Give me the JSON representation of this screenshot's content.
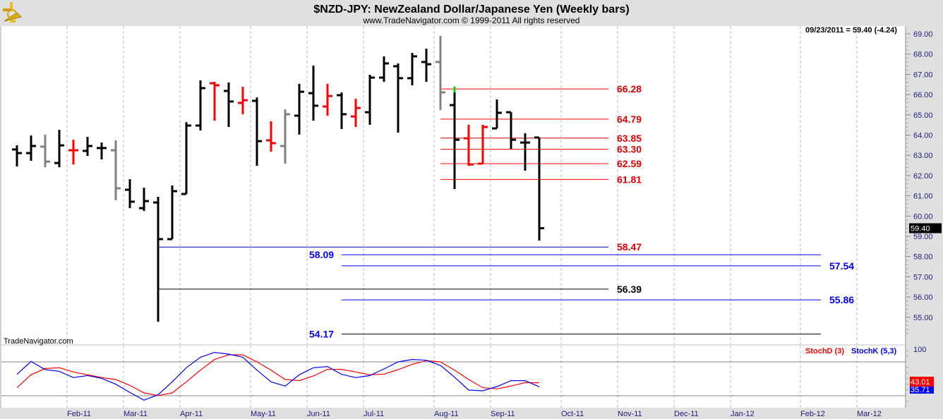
{
  "header": {
    "title": "$NZD-JPY:  NewZealand Dollar/Japanese Yen  (Weekly bars)",
    "subtitle": "www.TradeNavigator.com © 1999-2011 All rights reserved",
    "last_quote": "09/23/2011 = 59.40 (-4.24)",
    "watermark": "TradeNavigator.com"
  },
  "chart_data": [
    {
      "type": "ohlc",
      "title": "$NZD-JPY:  NewZealand Dollar/Japanese Yen  (Weekly bars)",
      "ylim": [
        54,
        69.6
      ],
      "y_ticks": [
        "69.00",
        "68.00",
        "67.00",
        "66.00",
        "65.00",
        "64.00",
        "63.00",
        "62.00",
        "61.00",
        "60.00",
        "59.00",
        "58.00",
        "57.00",
        "56.00",
        "55.00"
      ],
      "x_ticks": [
        "Feb-11",
        "Mar-11",
        "Apr-11",
        "May-11",
        "Jun-11",
        "Jul-11",
        "Aug-11",
        "Sep-11",
        "Oct-11",
        "Nov-11",
        "Dec-11",
        "Jan-12",
        "Feb-12",
        "Mar-12"
      ],
      "last_price_label": "59.40",
      "colors": {
        "k": "#000000",
        "r": "#ff0000",
        "g": "#808080",
        "up_tick": "#00dd00"
      },
      "bars": [
        {
          "o": 63.29,
          "h": 63.49,
          "l": 62.45,
          "c": 63.11,
          "col": "k"
        },
        {
          "o": 63.11,
          "h": 63.98,
          "l": 62.73,
          "c": 63.46,
          "col": "k"
        },
        {
          "o": 63.43,
          "h": 64.02,
          "l": 62.41,
          "c": 62.69,
          "col": "g"
        },
        {
          "o": 62.62,
          "h": 64.26,
          "l": 62.41,
          "c": 63.49,
          "col": "k"
        },
        {
          "o": 63.25,
          "h": 63.77,
          "l": 62.55,
          "c": 63.25,
          "col": "r"
        },
        {
          "o": 63.22,
          "h": 63.91,
          "l": 62.97,
          "c": 63.46,
          "col": "k"
        },
        {
          "o": 63.36,
          "h": 63.63,
          "l": 62.8,
          "c": 63.36,
          "col": "k"
        },
        {
          "o": 63.25,
          "h": 63.74,
          "l": 60.78,
          "c": 61.37,
          "col": "g"
        },
        {
          "o": 61.3,
          "h": 61.82,
          "l": 60.39,
          "c": 60.71,
          "col": "k"
        },
        {
          "o": 60.39,
          "h": 61.4,
          "l": 60.25,
          "c": 60.74,
          "col": "k"
        },
        {
          "o": 60.67,
          "h": 60.95,
          "l": 54.78,
          "c": 58.86,
          "col": "k"
        },
        {
          "o": 58.86,
          "h": 61.51,
          "l": 58.86,
          "c": 61.23,
          "col": "k"
        },
        {
          "o": 61.09,
          "h": 64.64,
          "l": 61.09,
          "c": 64.47,
          "col": "k"
        },
        {
          "o": 64.47,
          "h": 66.7,
          "l": 64.23,
          "c": 66.32,
          "col": "k"
        },
        {
          "o": 66.56,
          "h": 66.63,
          "l": 64.71,
          "c": 66.46,
          "col": "r"
        },
        {
          "o": 66.18,
          "h": 66.6,
          "l": 64.4,
          "c": 65.66,
          "col": "k"
        },
        {
          "o": 65.59,
          "h": 66.39,
          "l": 65.03,
          "c": 65.72,
          "col": "r"
        },
        {
          "o": 65.69,
          "h": 65.86,
          "l": 62.48,
          "c": 63.7,
          "col": "k"
        },
        {
          "o": 63.74,
          "h": 64.68,
          "l": 63.18,
          "c": 63.6,
          "col": "r"
        },
        {
          "o": 63.46,
          "h": 65.27,
          "l": 62.59,
          "c": 65.03,
          "col": "g"
        },
        {
          "o": 64.96,
          "h": 66.53,
          "l": 64.02,
          "c": 66.14,
          "col": "k"
        },
        {
          "o": 66.07,
          "h": 67.43,
          "l": 64.71,
          "c": 65.45,
          "col": "k"
        },
        {
          "o": 65.41,
          "h": 66.53,
          "l": 64.96,
          "c": 65.93,
          "col": "r"
        },
        {
          "o": 65.97,
          "h": 66.11,
          "l": 64.3,
          "c": 65.03,
          "col": "k"
        },
        {
          "o": 64.92,
          "h": 65.79,
          "l": 64.4,
          "c": 65.34,
          "col": "r"
        },
        {
          "o": 65.13,
          "h": 66.98,
          "l": 64.51,
          "c": 66.84,
          "col": "k"
        },
        {
          "o": 66.84,
          "h": 67.89,
          "l": 66.63,
          "c": 67.54,
          "col": "k"
        },
        {
          "o": 67.4,
          "h": 67.54,
          "l": 64.12,
          "c": 66.81,
          "col": "k"
        },
        {
          "o": 66.81,
          "h": 68.06,
          "l": 66.46,
          "c": 67.89,
          "col": "k"
        },
        {
          "o": 67.61,
          "h": 68.27,
          "l": 66.63,
          "c": 67.5,
          "col": "k"
        },
        {
          "o": 67.61,
          "h": 68.9,
          "l": 65.24,
          "c": 66.11,
          "col": "g"
        },
        {
          "o": 65.48,
          "h": 66.11,
          "l": 61.33,
          "c": 63.77,
          "col": "k",
          "tip": 66.4
        },
        {
          "o": 63.84,
          "h": 64.51,
          "l": 62.48,
          "c": 62.55,
          "col": "r"
        },
        {
          "o": 62.59,
          "h": 64.51,
          "l": 62.59,
          "c": 64.4,
          "col": "r"
        },
        {
          "o": 64.33,
          "h": 65.76,
          "l": 64.33,
          "c": 65.1,
          "col": "k"
        },
        {
          "o": 65.13,
          "h": 65.13,
          "l": 63.32,
          "c": 63.77,
          "col": "k"
        },
        {
          "o": 63.63,
          "h": 64.09,
          "l": 62.24,
          "c": 63.63,
          "col": "k"
        },
        {
          "o": 63.88,
          "h": 63.88,
          "l": 58.79,
          "c": 59.4,
          "col": "k"
        }
      ],
      "levels": [
        {
          "label": "66.28",
          "price": 66.28,
          "from_bar": 30,
          "to_bar": 41.9,
          "line": "#ff0000",
          "text": "#e00000",
          "side": "right"
        },
        {
          "label": "64.79",
          "price": 64.79,
          "from_bar": 30,
          "to_bar": 41.9,
          "line": "#ff0000",
          "text": "#e00000",
          "side": "right"
        },
        {
          "label": "63.85",
          "price": 63.85,
          "from_bar": 30,
          "to_bar": 41.9,
          "line": "#cc0000",
          "text": "#e00000",
          "side": "right"
        },
        {
          "label": "63.30",
          "price": 63.3,
          "from_bar": 30,
          "to_bar": 41.9,
          "line": "#ff0000",
          "text": "#e00000",
          "side": "right"
        },
        {
          "label": "62.59",
          "price": 62.59,
          "from_bar": 30,
          "to_bar": 41.9,
          "line": "#ff0000",
          "text": "#e00000",
          "side": "right"
        },
        {
          "label": "61.81",
          "price": 61.81,
          "from_bar": 30,
          "to_bar": 41.9,
          "line": "#ff0000",
          "text": "#e00000",
          "side": "right"
        },
        {
          "label": "58.47",
          "price": 58.47,
          "from_bar": 10,
          "to_bar": 41.9,
          "line": "#0000aa",
          "text": "#e00000",
          "side": "right"
        },
        {
          "label": "58.09",
          "price": 58.09,
          "from_bar": 23,
          "to_bar": 56.95,
          "line": "#0000ff",
          "text": "#0000ff",
          "side": "left"
        },
        {
          "label": "57.54",
          "price": 57.54,
          "from_bar": 23,
          "to_bar": 56.95,
          "line": "#0000ff",
          "text": "#0000ff",
          "side": "right"
        },
        {
          "label": "56.39",
          "price": 56.39,
          "from_bar": 10,
          "to_bar": 41.9,
          "line": "#000000",
          "text": "#000000",
          "side": "right"
        },
        {
          "label": "55.86",
          "price": 55.86,
          "from_bar": 23,
          "to_bar": 56.95,
          "line": "#0000ff",
          "text": "#0000ff",
          "side": "right"
        },
        {
          "label": "54.17",
          "price": 54.17,
          "from_bar": 23,
          "to_bar": 56.95,
          "line": "#000000",
          "text": "#0000ff",
          "side": "left"
        }
      ]
    },
    {
      "type": "line",
      "title": "Stochastics",
      "ylim": [
        0,
        100
      ],
      "y_ticks": [
        "100"
      ],
      "ref_lines": [
        80,
        20
      ],
      "series": [
        {
          "name": "StochD (3)",
          "color": "#ff0000",
          "last_label": "43.01",
          "values": [
            34.2,
            57.1,
            68.3,
            69.6,
            62.1,
            57.1,
            52.1,
            48.8,
            38.3,
            25.0,
            20.4,
            25.0,
            44.6,
            65.4,
            84.2,
            92.5,
            92.5,
            80.0,
            65.4,
            48.8,
            46.7,
            55.0,
            66.7,
            66.7,
            62.1,
            57.1,
            58.3,
            66.3,
            75.8,
            82.1,
            80.0,
            65.4,
            48.8,
            34.2,
            32.1,
            37.1,
            43.3,
            43.01
          ]
        },
        {
          "name": "StochK (5,3)",
          "color": "#0000ff",
          "last_label": "35.71",
          "values": [
            57.9,
            80.8,
            66.3,
            63.3,
            52.1,
            55.8,
            50.8,
            40.4,
            25.8,
            12.1,
            21.7,
            44.6,
            69.6,
            88.3,
            96.7,
            93.8,
            88.3,
            65.4,
            44.6,
            37.1,
            57.1,
            69.6,
            71.7,
            57.9,
            52.1,
            55.8,
            67.5,
            80.0,
            84.2,
            82.9,
            73.7,
            52.9,
            30.0,
            28.8,
            36.3,
            46.7,
            46.7,
            35.71
          ]
        }
      ]
    }
  ]
}
